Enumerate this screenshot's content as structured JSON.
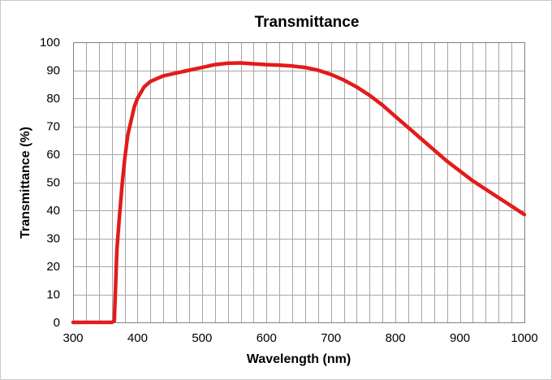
{
  "chart_data": {
    "type": "line",
    "title": "Transmittance",
    "xlabel": "Wavelength (nm)",
    "ylabel": "Transmittance (%)",
    "xlim": [
      300,
      1000
    ],
    "ylim": [
      0,
      100
    ],
    "x_ticks": [
      300,
      400,
      500,
      600,
      700,
      800,
      900,
      1000
    ],
    "y_ticks": [
      0,
      10,
      20,
      30,
      40,
      50,
      60,
      70,
      80,
      90,
      100
    ],
    "x_minor_step": 20,
    "grid": true,
    "legend": "none",
    "series": [
      {
        "color": "#e31b1b",
        "x": [
          300,
          360,
          364,
          366,
          368,
          372,
          376,
          380,
          385,
          390,
          395,
          400,
          410,
          420,
          440,
          460,
          480,
          500,
          520,
          540,
          560,
          580,
          600,
          620,
          640,
          660,
          680,
          700,
          720,
          740,
          760,
          780,
          800,
          820,
          840,
          860,
          880,
          900,
          920,
          940,
          960,
          980,
          1000
        ],
        "y": [
          0,
          0,
          0.5,
          13,
          26,
          38,
          49,
          58,
          67,
          72,
          77,
          80,
          84,
          86,
          88,
          89,
          90,
          91,
          92,
          92.5,
          92.6,
          92.3,
          92,
          91.8,
          91.5,
          91,
          90,
          88.5,
          86.5,
          84,
          81,
          77.5,
          73.5,
          69.5,
          65.5,
          61.5,
          57.5,
          54,
          50.5,
          47.5,
          44.5,
          41.5,
          38.5
        ]
      }
    ]
  }
}
